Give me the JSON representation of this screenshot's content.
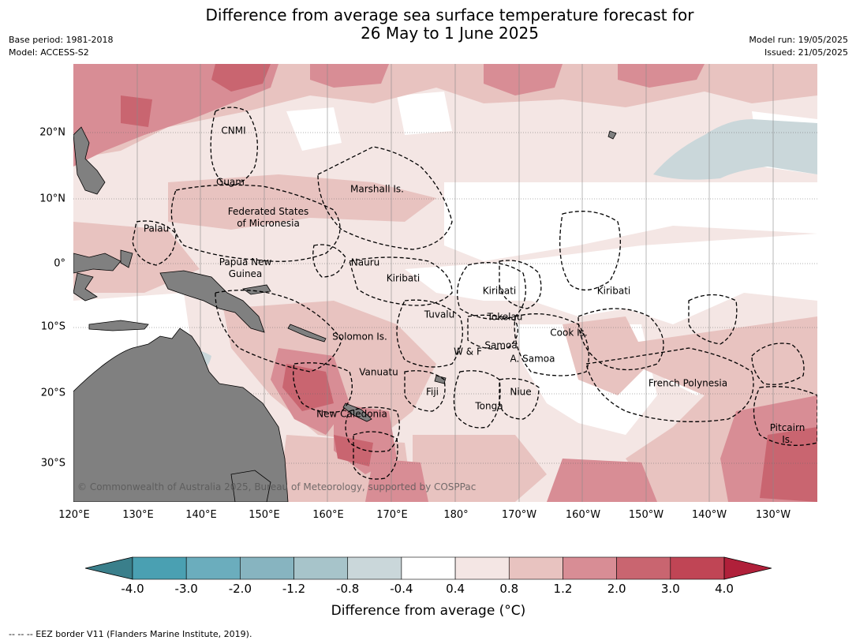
{
  "title_line1": "Difference from average sea surface temperature forecast for",
  "title_line2": "26 May to 1 June 2025",
  "base_period": "Base period: 1981-2018",
  "model": "Model: ACCESS-S2",
  "model_run": "Model run: 19/05/2025",
  "issued": "Issued: 21/05/2025",
  "lat_labels": [
    "20°N",
    "10°N",
    "0°",
    "10°S",
    "20°S",
    "30°S"
  ],
  "lon_labels": [
    "120°E",
    "130°E",
    "140°E",
    "150°E",
    "160°E",
    "170°E",
    "180°",
    "170°W",
    "160°W",
    "150°W",
    "140°W",
    "130°W"
  ],
  "region_labels": {
    "cnmi": "CNMI",
    "guam": "Guam",
    "marshall": "Marshall Is.",
    "fsm_1": "Federated States",
    "fsm_2": "of Micronesia",
    "palau": "Palau",
    "png_1": "Papua New",
    "png_2": "Guinea",
    "nauru": "Nauru",
    "kiribati_w": "Kiribati",
    "kiribati_c": "Kiribati",
    "kiribati_e": "Kiribati",
    "tuvalu": "Tuvalu",
    "tokelau": "Tokelau",
    "cook": "Cook Is.",
    "solomon": "Solomon Is.",
    "wf": "W & F",
    "samoa": "Samoa",
    "asamoa": "A. Samoa",
    "vanuatu": "Vanuatu",
    "fiji": "Fiji",
    "niue": "Niue",
    "tonga": "Tonga",
    "frpoly": "French Polynesia",
    "newcal": "New Caledonia",
    "pitcairn_1": "Pitcairn",
    "pitcairn_2": "Is."
  },
  "copyright": "© Commonwealth of Australia 2025, Bureau of Meteorology, supported by COSPPac",
  "colorbar": {
    "ticks": [
      "-4.0",
      "-3.0",
      "-2.0",
      "-1.2",
      "-0.8",
      "-0.4",
      "0.4",
      "0.8",
      "1.2",
      "2.0",
      "3.0",
      "4.0"
    ],
    "colors": [
      "#3a7f8b",
      "#4aa0b2",
      "#6badbd",
      "#87b4c0",
      "#a7c4ca",
      "#cad7da",
      "#ffffff",
      "#f4e6e4",
      "#e8c3c0",
      "#d88d95",
      "#c96570",
      "#c04555",
      "#b0203a"
    ],
    "label": "Difference from average ($^\\circ$C)",
    "label_text": "Difference from average (°C)"
  },
  "eez_note": "--  --  -- EEZ border V11 (Flanders Marine Institute, 2019).",
  "colors": {
    "land": "#808080",
    "cool_light": "#cad7da",
    "warm_1": "#f4e6e4",
    "warm_2": "#e8c3c0",
    "warm_3": "#d88d95",
    "warm_4": "#c96570"
  }
}
